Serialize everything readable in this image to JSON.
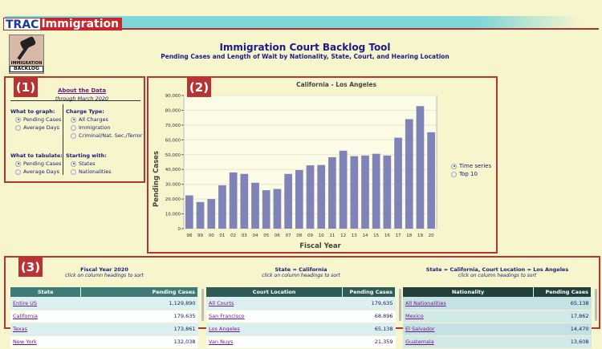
{
  "brand": {
    "trac": "TRAC",
    "immigration": "Immigration"
  },
  "logo": {
    "line1": "IMMIGRATION",
    "line2": "BACKLOG"
  },
  "header": {
    "title": "Immigration Court Backlog Tool",
    "subtitle": "Pending Cases and Length of Wait by Nationality, State, Court, and Hearing Location"
  },
  "panel1": {
    "badge": "(1)",
    "about": "About the Data",
    "through": "through March 2020",
    "graph_label": "What to graph:",
    "graph_options": [
      "Pending Cases",
      "Average Days"
    ],
    "charge_label": "Charge Type:",
    "charge_options": [
      "All Charges",
      "Immigration",
      "Criminal/Nat. Sec./Terror"
    ],
    "tabulate_label": "What to tabulate:",
    "tabulate_options": [
      "Pending Cases",
      "Average Days"
    ],
    "start_label": "Starting with:",
    "start_options": [
      "States",
      "Nationalities"
    ]
  },
  "panel2": {
    "badge": "(2)",
    "view_options": [
      "Time series",
      "Top 10"
    ],
    "selected_view": "Time series"
  },
  "chart_data": {
    "type": "bar",
    "title": "California - Los Angeles",
    "xlabel": "Fiscal Year",
    "ylabel": "Pending Cases",
    "categories": [
      "98",
      "99",
      "00",
      "01",
      "02",
      "03",
      "04",
      "05",
      "06",
      "07",
      "08",
      "09",
      "10",
      "11",
      "12",
      "13",
      "14",
      "15",
      "16",
      "17",
      "18",
      "19",
      "20"
    ],
    "values": [
      22500,
      18000,
      20000,
      29300,
      38000,
      37000,
      31000,
      26000,
      26800,
      37000,
      39600,
      42800,
      43000,
      48300,
      52700,
      49000,
      49400,
      50600,
      49400,
      61500,
      74000,
      82800,
      65138
    ],
    "ylim": [
      0,
      90000
    ],
    "yticks": [
      "0",
      "10,000",
      "20,000",
      "30,000",
      "40,000",
      "50,000",
      "60,000",
      "70,000",
      "80,000",
      "90,000"
    ],
    "grid": true,
    "color": "#8083b8"
  },
  "panel3": {
    "badge": "(3)",
    "tables": [
      {
        "title": "Fiscal Year 2020",
        "hint": "click on column headings to sort",
        "headers": [
          "State",
          "Pending Cases"
        ],
        "header_color": "#3f7a74",
        "rows": [
          [
            "Entire US",
            "1,129,890"
          ],
          [
            "California",
            "179,635"
          ],
          [
            "Texas",
            "173,861"
          ],
          [
            "New York",
            "132,038"
          ]
        ]
      },
      {
        "title": "State = California",
        "hint": "click on column headings to sort",
        "headers": [
          "Court Location",
          "Pending Cases"
        ],
        "header_color": "#2e5b56",
        "rows": [
          [
            "All Courts",
            "179,635"
          ],
          [
            "San Francisco",
            "68,896"
          ],
          [
            "Los Angeles",
            "65,138"
          ],
          [
            "Van Nuys",
            "21,359"
          ]
        ]
      },
      {
        "title": "State = California, Court Location = Los Angeles",
        "hint": "click on column headings to sort",
        "headers": [
          "Nationality",
          "Pending Cases"
        ],
        "header_color": "#24403c",
        "rows": [
          [
            "All Nationalities",
            "65,138"
          ],
          [
            "Mexico",
            "17,862"
          ],
          [
            "El Salvador",
            "14,470"
          ],
          [
            "Guatemala",
            "13,608"
          ]
        ]
      }
    ]
  }
}
